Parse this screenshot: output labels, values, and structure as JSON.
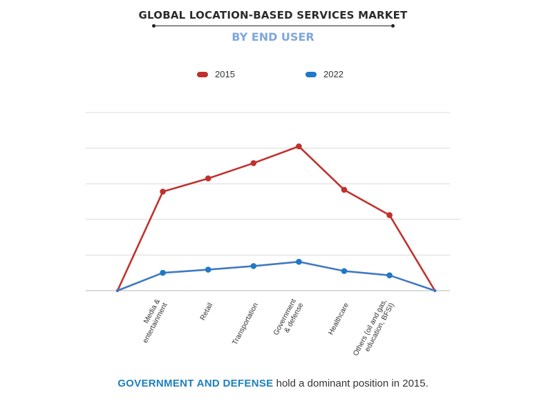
{
  "header": {
    "title": "GLOBAL LOCATION-BASED SERVICES MARKET",
    "subtitle": "BY END USER"
  },
  "colors": {
    "series_2015": "#c0312e",
    "series_2022": "#3f79c0",
    "point_2022": "#1f78c8",
    "highlight": "#1c7fbf"
  },
  "chart_data": {
    "type": "line",
    "categories": [
      "",
      "Media & entertainment",
      "Retail",
      "Transportation",
      "Government & defense",
      "Healthcare",
      "Others (oil and gas, education, BFSI)",
      ""
    ],
    "category_label_lines": [
      [],
      [
        "Media &",
        "entertainment"
      ],
      [
        "Retail"
      ],
      [
        "Transportation"
      ],
      [
        "Government",
        "& defense"
      ],
      [
        "Healthcare"
      ],
      [
        "Others (oil and gas,",
        "education, BFSI)"
      ],
      []
    ],
    "series": [
      {
        "name": "2015",
        "values": [
          0,
          2.78,
          3.15,
          3.58,
          4.05,
          2.83,
          2.12,
          0
        ]
      },
      {
        "name": "2022",
        "values": [
          0,
          0.5,
          0.59,
          0.69,
          0.81,
          0.55,
          0.43,
          0
        ]
      }
    ],
    "ylim": [
      0,
      5
    ],
    "y_ticks_labeled": false,
    "grid": true,
    "legend_position": "top-center",
    "xlabel": "",
    "ylabel": ""
  },
  "footer": {
    "highlight": "GOVERNMENT AND DEFENSE",
    "rest": " hold a dominant position in 2015."
  }
}
